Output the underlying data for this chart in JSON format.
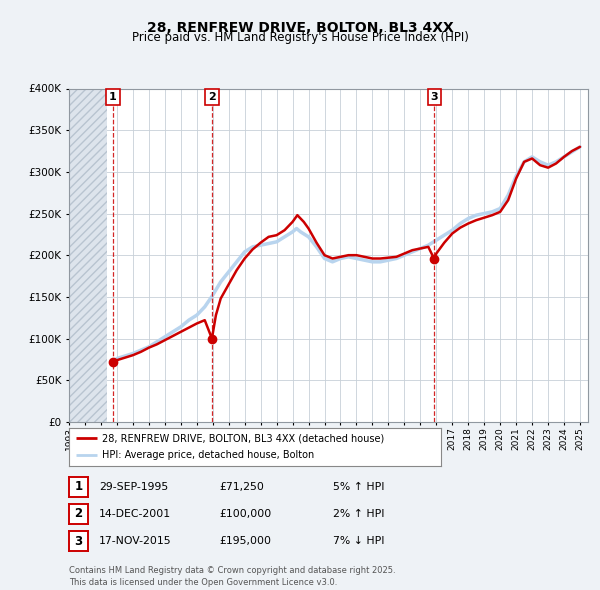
{
  "title_line1": "28, RENFREW DRIVE, BOLTON, BL3 4XX",
  "title_line2": "Price paid vs. HM Land Registry's House Price Index (HPI)",
  "sale_events": [
    {
      "num": 1,
      "date": "29-SEP-1995",
      "year": 1995.75,
      "price": 71250,
      "pct": "5%",
      "direction": "↑"
    },
    {
      "num": 2,
      "date": "14-DEC-2001",
      "year": 2001.95,
      "price": 100000,
      "pct": "2%",
      "direction": "↑"
    },
    {
      "num": 3,
      "date": "17-NOV-2015",
      "year": 2015.88,
      "price": 195000,
      "pct": "7%",
      "direction": "↓"
    }
  ],
  "legend_line1": "28, RENFREW DRIVE, BOLTON, BL3 4XX (detached house)",
  "legend_line2": "HPI: Average price, detached house, Bolton",
  "footer": "Contains HM Land Registry data © Crown copyright and database right 2025.\nThis data is licensed under the Open Government Licence v3.0.",
  "hpi_color": "#b8d4ee",
  "price_color": "#cc0000",
  "background_color": "#eef2f6",
  "plot_bg": "#ffffff",
  "ylim": [
    0,
    400000
  ],
  "xlim_start": 1993.0,
  "xlim_end": 2025.5,
  "hatch_end": 1995.4
}
